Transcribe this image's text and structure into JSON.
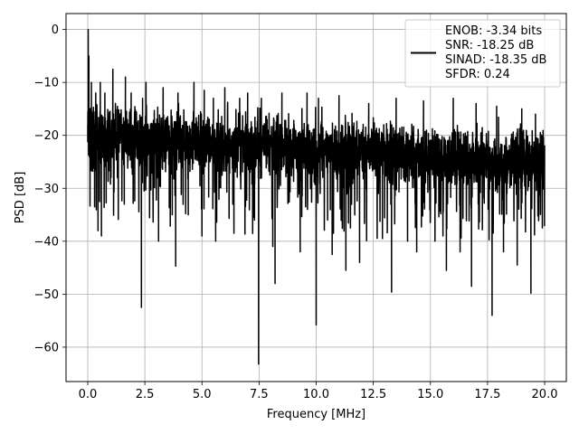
{
  "chart_data": {
    "type": "line",
    "xlabel": "Frequency [MHz]",
    "ylabel": "PSD [dB]",
    "xlim": [
      -0.95,
      20.95
    ],
    "ylim": [
      -66.5,
      3.0
    ],
    "xticks": [
      0.0,
      2.5,
      5.0,
      7.5,
      10.0,
      12.5,
      15.0,
      17.5,
      20.0
    ],
    "xtick_labels": [
      "0.0",
      "2.5",
      "5.0",
      "7.5",
      "10.0",
      "12.5",
      "15.0",
      "17.5",
      "20.0"
    ],
    "yticks": [
      0,
      -10,
      -20,
      -30,
      -40,
      -50,
      -60
    ],
    "ytick_labels": [
      "0",
      "−10",
      "−20",
      "−30",
      "−40",
      "−50",
      "−60"
    ],
    "grid": true,
    "legend": {
      "placement": "top-right",
      "entries": [
        "ENOB: -3.34 bits",
        "SNR: -18.25 dB",
        "SINAD: -18.35 dB",
        "SFDR: 0.24"
      ]
    },
    "series": [
      {
        "color": "#000000",
        "noise_floor_db": [
          -20,
          -25
        ],
        "points": [
          [
            0.0,
            -18.0
          ],
          [
            0.02,
            0.0
          ],
          [
            0.05,
            -5.0
          ],
          [
            0.08,
            -15.0
          ],
          [
            0.12,
            -22.0
          ],
          [
            0.16,
            -10.0
          ],
          [
            0.2,
            -23.0
          ],
          [
            0.3,
            -33.5
          ],
          [
            0.35,
            -12.0
          ],
          [
            0.45,
            -38.0
          ],
          [
            0.55,
            -10.0
          ],
          [
            0.6,
            -39.0
          ],
          [
            0.75,
            -12.0
          ],
          [
            1.1,
            -7.5
          ],
          [
            1.3,
            -28.0
          ],
          [
            1.6,
            -33.0
          ],
          [
            1.65,
            -9.0
          ],
          [
            1.9,
            -12.0
          ],
          [
            2.35,
            -52.5
          ],
          [
            2.4,
            -13.0
          ],
          [
            2.55,
            -10.0
          ],
          [
            3.1,
            -40.0
          ],
          [
            3.3,
            -11.0
          ],
          [
            3.7,
            -35.0
          ],
          [
            3.85,
            -44.7
          ],
          [
            3.95,
            -12.0
          ],
          [
            4.4,
            -35.0
          ],
          [
            4.65,
            -10.0
          ],
          [
            5.0,
            -39.0
          ],
          [
            5.1,
            -11.5
          ],
          [
            5.5,
            -13.0
          ],
          [
            5.6,
            -40.0
          ],
          [
            6.0,
            -11.0
          ],
          [
            6.4,
            -38.5
          ],
          [
            6.65,
            -13.0
          ],
          [
            7.0,
            -12.0
          ],
          [
            7.3,
            -36.0
          ],
          [
            7.48,
            -63.2
          ],
          [
            7.6,
            -13.0
          ],
          [
            8.1,
            -41.0
          ],
          [
            8.2,
            -48.0
          ],
          [
            8.5,
            -12.0
          ],
          [
            9.3,
            -42.0
          ],
          [
            9.6,
            -12.0
          ],
          [
            10.0,
            -55.8
          ],
          [
            10.1,
            -13.0
          ],
          [
            10.5,
            -36.0
          ],
          [
            10.7,
            -42.5
          ],
          [
            11.0,
            -12.5
          ],
          [
            11.3,
            -45.5
          ],
          [
            11.5,
            -37.5
          ],
          [
            11.9,
            -44.0
          ],
          [
            12.3,
            -14.0
          ],
          [
            12.9,
            -39.5
          ],
          [
            13.3,
            -49.6
          ],
          [
            13.5,
            -13.0
          ],
          [
            14.0,
            -40.0
          ],
          [
            14.4,
            -42.0
          ],
          [
            14.7,
            -13.5
          ],
          [
            15.2,
            -40.0
          ],
          [
            15.7,
            -45.5
          ],
          [
            16.0,
            -13.0
          ],
          [
            16.3,
            -42.0
          ],
          [
            16.8,
            -48.5
          ],
          [
            17.0,
            -14.0
          ],
          [
            17.7,
            -54.0
          ],
          [
            17.9,
            -14.5
          ],
          [
            18.2,
            -42.0
          ],
          [
            18.8,
            -44.5
          ],
          [
            19.0,
            -15.0
          ],
          [
            19.4,
            -49.8
          ],
          [
            19.6,
            -16.0
          ],
          [
            19.9,
            -37.5
          ],
          [
            20.0,
            -22.0
          ]
        ]
      }
    ]
  }
}
